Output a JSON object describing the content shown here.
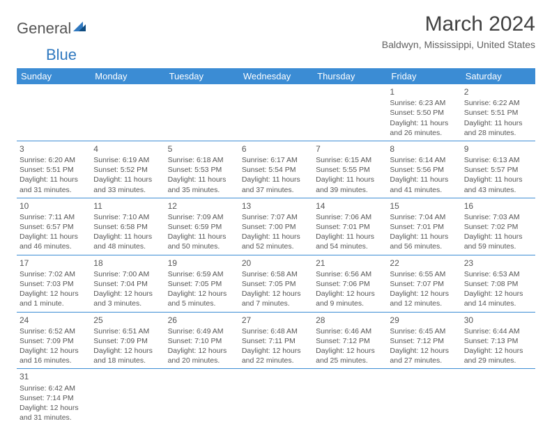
{
  "logo": {
    "part1": "General",
    "part2": "Blue"
  },
  "title": "March 2024",
  "location": "Baldwyn, Mississippi, United States",
  "colors": {
    "header_bg": "#3b8cd4",
    "header_text": "#ffffff",
    "border": "#3b8cd4",
    "text": "#555555",
    "title": "#404040",
    "logo_blue": "#2f78bf"
  },
  "typography": {
    "title_fontsize": 30,
    "location_fontsize": 14,
    "dayheader_fontsize": 13,
    "cell_fontsize": 10.5,
    "daynum_fontsize": 12
  },
  "day_headers": [
    "Sunday",
    "Monday",
    "Tuesday",
    "Wednesday",
    "Thursday",
    "Friday",
    "Saturday"
  ],
  "weeks": [
    [
      null,
      null,
      null,
      null,
      null,
      {
        "n": "1",
        "sr": "Sunrise: 6:23 AM",
        "ss": "Sunset: 5:50 PM",
        "dl1": "Daylight: 11 hours",
        "dl2": "and 26 minutes."
      },
      {
        "n": "2",
        "sr": "Sunrise: 6:22 AM",
        "ss": "Sunset: 5:51 PM",
        "dl1": "Daylight: 11 hours",
        "dl2": "and 28 minutes."
      }
    ],
    [
      {
        "n": "3",
        "sr": "Sunrise: 6:20 AM",
        "ss": "Sunset: 5:51 PM",
        "dl1": "Daylight: 11 hours",
        "dl2": "and 31 minutes."
      },
      {
        "n": "4",
        "sr": "Sunrise: 6:19 AM",
        "ss": "Sunset: 5:52 PM",
        "dl1": "Daylight: 11 hours",
        "dl2": "and 33 minutes."
      },
      {
        "n": "5",
        "sr": "Sunrise: 6:18 AM",
        "ss": "Sunset: 5:53 PM",
        "dl1": "Daylight: 11 hours",
        "dl2": "and 35 minutes."
      },
      {
        "n": "6",
        "sr": "Sunrise: 6:17 AM",
        "ss": "Sunset: 5:54 PM",
        "dl1": "Daylight: 11 hours",
        "dl2": "and 37 minutes."
      },
      {
        "n": "7",
        "sr": "Sunrise: 6:15 AM",
        "ss": "Sunset: 5:55 PM",
        "dl1": "Daylight: 11 hours",
        "dl2": "and 39 minutes."
      },
      {
        "n": "8",
        "sr": "Sunrise: 6:14 AM",
        "ss": "Sunset: 5:56 PM",
        "dl1": "Daylight: 11 hours",
        "dl2": "and 41 minutes."
      },
      {
        "n": "9",
        "sr": "Sunrise: 6:13 AM",
        "ss": "Sunset: 5:57 PM",
        "dl1": "Daylight: 11 hours",
        "dl2": "and 43 minutes."
      }
    ],
    [
      {
        "n": "10",
        "sr": "Sunrise: 7:11 AM",
        "ss": "Sunset: 6:57 PM",
        "dl1": "Daylight: 11 hours",
        "dl2": "and 46 minutes."
      },
      {
        "n": "11",
        "sr": "Sunrise: 7:10 AM",
        "ss": "Sunset: 6:58 PM",
        "dl1": "Daylight: 11 hours",
        "dl2": "and 48 minutes."
      },
      {
        "n": "12",
        "sr": "Sunrise: 7:09 AM",
        "ss": "Sunset: 6:59 PM",
        "dl1": "Daylight: 11 hours",
        "dl2": "and 50 minutes."
      },
      {
        "n": "13",
        "sr": "Sunrise: 7:07 AM",
        "ss": "Sunset: 7:00 PM",
        "dl1": "Daylight: 11 hours",
        "dl2": "and 52 minutes."
      },
      {
        "n": "14",
        "sr": "Sunrise: 7:06 AM",
        "ss": "Sunset: 7:01 PM",
        "dl1": "Daylight: 11 hours",
        "dl2": "and 54 minutes."
      },
      {
        "n": "15",
        "sr": "Sunrise: 7:04 AM",
        "ss": "Sunset: 7:01 PM",
        "dl1": "Daylight: 11 hours",
        "dl2": "and 56 minutes."
      },
      {
        "n": "16",
        "sr": "Sunrise: 7:03 AM",
        "ss": "Sunset: 7:02 PM",
        "dl1": "Daylight: 11 hours",
        "dl2": "and 59 minutes."
      }
    ],
    [
      {
        "n": "17",
        "sr": "Sunrise: 7:02 AM",
        "ss": "Sunset: 7:03 PM",
        "dl1": "Daylight: 12 hours",
        "dl2": "and 1 minute."
      },
      {
        "n": "18",
        "sr": "Sunrise: 7:00 AM",
        "ss": "Sunset: 7:04 PM",
        "dl1": "Daylight: 12 hours",
        "dl2": "and 3 minutes."
      },
      {
        "n": "19",
        "sr": "Sunrise: 6:59 AM",
        "ss": "Sunset: 7:05 PM",
        "dl1": "Daylight: 12 hours",
        "dl2": "and 5 minutes."
      },
      {
        "n": "20",
        "sr": "Sunrise: 6:58 AM",
        "ss": "Sunset: 7:05 PM",
        "dl1": "Daylight: 12 hours",
        "dl2": "and 7 minutes."
      },
      {
        "n": "21",
        "sr": "Sunrise: 6:56 AM",
        "ss": "Sunset: 7:06 PM",
        "dl1": "Daylight: 12 hours",
        "dl2": "and 9 minutes."
      },
      {
        "n": "22",
        "sr": "Sunrise: 6:55 AM",
        "ss": "Sunset: 7:07 PM",
        "dl1": "Daylight: 12 hours",
        "dl2": "and 12 minutes."
      },
      {
        "n": "23",
        "sr": "Sunrise: 6:53 AM",
        "ss": "Sunset: 7:08 PM",
        "dl1": "Daylight: 12 hours",
        "dl2": "and 14 minutes."
      }
    ],
    [
      {
        "n": "24",
        "sr": "Sunrise: 6:52 AM",
        "ss": "Sunset: 7:09 PM",
        "dl1": "Daylight: 12 hours",
        "dl2": "and 16 minutes."
      },
      {
        "n": "25",
        "sr": "Sunrise: 6:51 AM",
        "ss": "Sunset: 7:09 PM",
        "dl1": "Daylight: 12 hours",
        "dl2": "and 18 minutes."
      },
      {
        "n": "26",
        "sr": "Sunrise: 6:49 AM",
        "ss": "Sunset: 7:10 PM",
        "dl1": "Daylight: 12 hours",
        "dl2": "and 20 minutes."
      },
      {
        "n": "27",
        "sr": "Sunrise: 6:48 AM",
        "ss": "Sunset: 7:11 PM",
        "dl1": "Daylight: 12 hours",
        "dl2": "and 22 minutes."
      },
      {
        "n": "28",
        "sr": "Sunrise: 6:46 AM",
        "ss": "Sunset: 7:12 PM",
        "dl1": "Daylight: 12 hours",
        "dl2": "and 25 minutes."
      },
      {
        "n": "29",
        "sr": "Sunrise: 6:45 AM",
        "ss": "Sunset: 7:12 PM",
        "dl1": "Daylight: 12 hours",
        "dl2": "and 27 minutes."
      },
      {
        "n": "30",
        "sr": "Sunrise: 6:44 AM",
        "ss": "Sunset: 7:13 PM",
        "dl1": "Daylight: 12 hours",
        "dl2": "and 29 minutes."
      }
    ],
    [
      {
        "n": "31",
        "sr": "Sunrise: 6:42 AM",
        "ss": "Sunset: 7:14 PM",
        "dl1": "Daylight: 12 hours",
        "dl2": "and 31 minutes."
      },
      null,
      null,
      null,
      null,
      null,
      null
    ]
  ]
}
